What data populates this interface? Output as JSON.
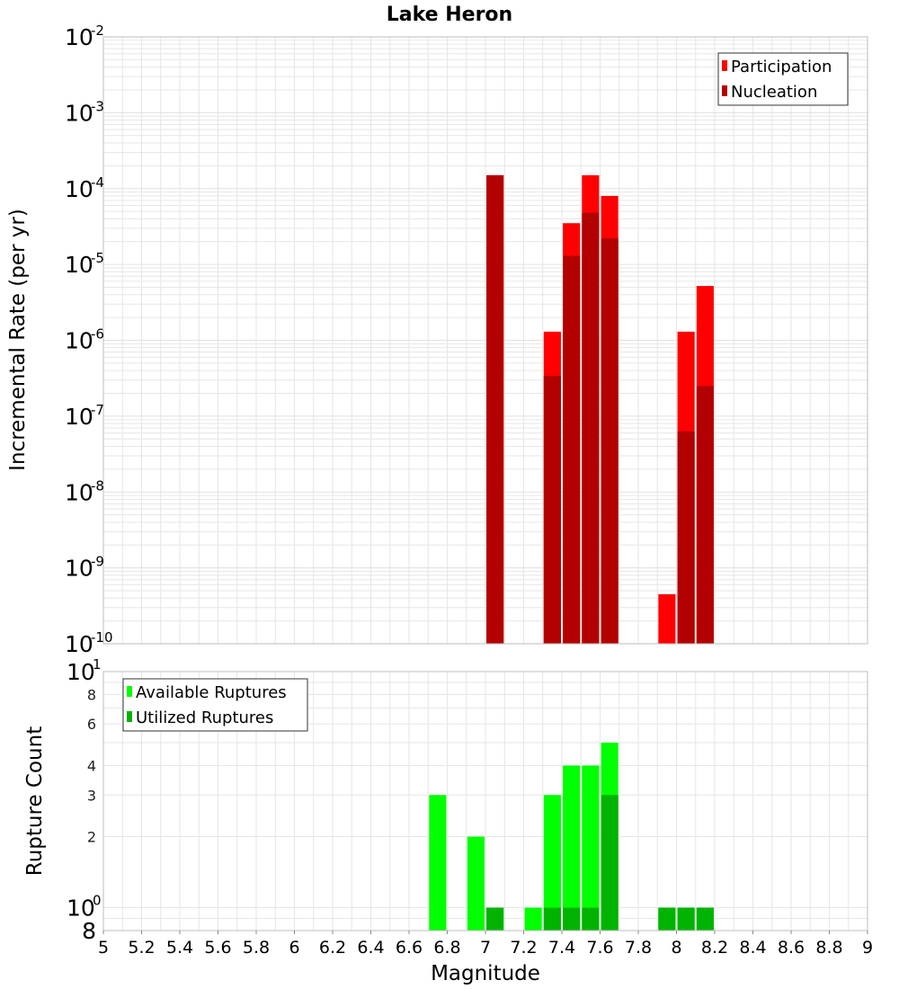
{
  "chart_data": [
    {
      "type": "bar",
      "title": "Lake Heron",
      "xlabel": "",
      "ylabel": "Incremental Rate (per yr)",
      "xlim": [
        5,
        9
      ],
      "ylim": [
        1e-10,
        0.01
      ],
      "yscale": "log",
      "grid": true,
      "legend_position": "top-right",
      "bar_width": 0.09,
      "y_tick_exponents": [
        "-10",
        "-9",
        "-8",
        "-7",
        "-6",
        "-5",
        "-4",
        "-3",
        "-2"
      ],
      "series": [
        {
          "name": "Participation",
          "color": "#ff0000",
          "x": [
            7.05,
            7.35,
            7.45,
            7.55,
            7.65,
            7.95,
            8.05,
            8.15
          ],
          "values": [
            0.00015,
            1.3e-06,
            3.5e-05,
            0.00015,
            8e-05,
            4.5e-10,
            1.3e-06,
            5.2e-06
          ]
        },
        {
          "name": "Nucleation",
          "color": "#b30000",
          "x": [
            7.05,
            7.35,
            7.45,
            7.55,
            7.65,
            8.05,
            8.15
          ],
          "values": [
            0.00015,
            3.4e-07,
            1.3e-05,
            4.8e-05,
            2.2e-05,
            6.3e-08,
            2.5e-07
          ]
        }
      ]
    },
    {
      "type": "bar",
      "title": "",
      "xlabel": "Magnitude",
      "ylabel": "Rupture Count",
      "xlim": [
        5,
        9
      ],
      "ylim": [
        0.8,
        10
      ],
      "yscale": "log",
      "grid": true,
      "legend_position": "top-left",
      "bar_width": 0.09,
      "x_tick_labels": [
        "5",
        "5.2",
        "5.4",
        "5.6",
        "5.8",
        "6",
        "6.2",
        "6.4",
        "6.6",
        "6.8",
        "7",
        "7.2",
        "7.4",
        "7.6",
        "7.8",
        "8",
        "8.2",
        "8.4",
        "8.6",
        "8.8",
        "9"
      ],
      "y_major_ticks": [
        {
          "base": "10",
          "exp": "0",
          "value": 1
        },
        {
          "base": "10",
          "exp": "1",
          "value": 10
        }
      ],
      "y_minor_ticks": [
        {
          "label": "2",
          "value": 2
        },
        {
          "label": "3",
          "value": 3
        },
        {
          "label": "4",
          "value": 4
        },
        {
          "label": "6",
          "value": 6
        },
        {
          "label": "8",
          "value": 8
        }
      ],
      "y_bottom_label": {
        "label": "8",
        "value": 0.8
      },
      "series": [
        {
          "name": "Available Ruptures",
          "color": "#00ff00",
          "x": [
            6.75,
            6.95,
            7.05,
            7.25,
            7.35,
            7.45,
            7.55,
            7.65,
            7.95,
            8.05,
            8.15
          ],
          "values": [
            3,
            2,
            1,
            1,
            3,
            4,
            4,
            5,
            1,
            1,
            1
          ]
        },
        {
          "name": "Utilized Ruptures",
          "color": "#00b300",
          "x": [
            7.05,
            7.35,
            7.45,
            7.55,
            7.65,
            7.95,
            8.05,
            8.15
          ],
          "values": [
            1,
            1,
            1,
            1,
            3,
            1,
            1,
            1
          ]
        }
      ]
    }
  ]
}
